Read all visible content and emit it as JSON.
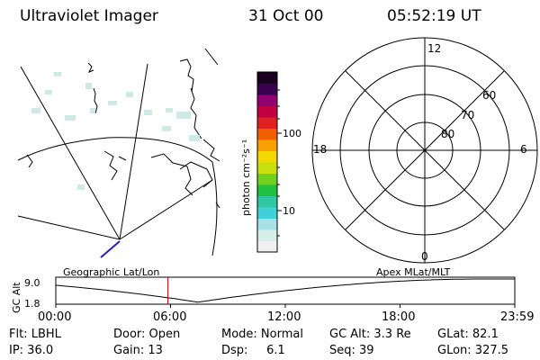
{
  "header": {
    "instrument": "Ultraviolet Imager",
    "date": "31 Oct 00",
    "time": "05:52:19 UT"
  },
  "colorbar": {
    "unit_label": "photon cm⁻²s⁻¹",
    "tick_labels": [
      "100",
      "10"
    ],
    "colors": [
      "#f0f0f0",
      "#d8eee8",
      "#a8e0e8",
      "#40d0d8",
      "#30c8a0",
      "#20c040",
      "#70d020",
      "#c8e010",
      "#f0d800",
      "#f8a000",
      "#f06000",
      "#e02020",
      "#c00040",
      "#900070",
      "#3a0050",
      "#1a0020"
    ]
  },
  "polar_plot": {
    "mlt_labels": {
      "top": "12",
      "left": "18",
      "right": "6",
      "bottom": "0"
    },
    "lat_labels": [
      "60",
      "70",
      "80"
    ]
  },
  "timeline": {
    "left_label": "Geographic Lat/Lon",
    "right_label": "Apex MLat/MLT",
    "axis_title": "GC Alt",
    "y_ticks": [
      "9.0",
      "1.8"
    ],
    "x_ticks": [
      "00:00",
      "06:00",
      "12:00",
      "18:00",
      "23:59"
    ],
    "current_time_fraction": 0.2443
  },
  "info": {
    "filter": "Flt: LBHL",
    "door": "Door: Open",
    "mode": "Mode: Normal",
    "gc_alt": "GC Alt: 3.3 Re",
    "glat": "GLat:  82.1",
    "ip": "IP: 36.0",
    "gain": "Gain: 13",
    "dsp": "Dsp:     6.1",
    "seq": "Seq: 39",
    "glon": "GLon: 327.5"
  },
  "colors": {
    "marker": "#c00000",
    "track": "#000000"
  }
}
